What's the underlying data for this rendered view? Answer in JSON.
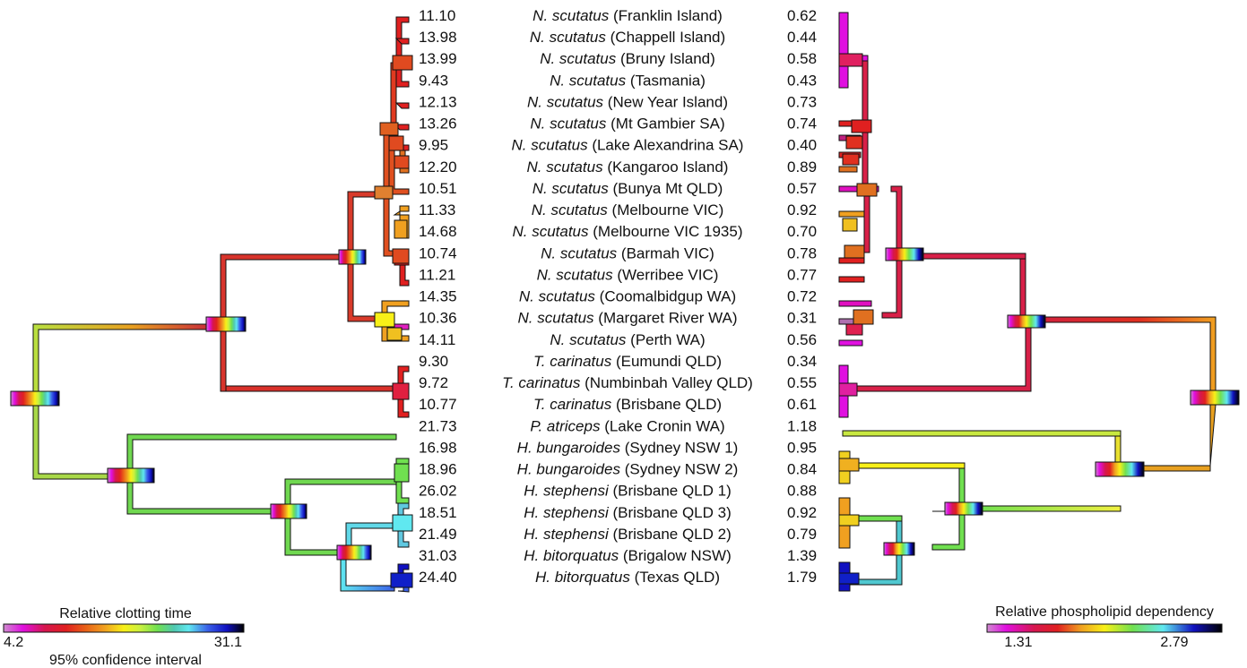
{
  "colors": {
    "palette_stops": [
      "#cf8ccf",
      "#e010e0",
      "#d61650",
      "#e02020",
      "#e86018",
      "#f0a020",
      "#f8f018",
      "#c8f040",
      "#70e050",
      "#50c8b0",
      "#60e8f0",
      "#3a60e8",
      "#1010c0",
      "#000000"
    ],
    "border": "#111111"
  },
  "left_legend": {
    "title": "Relative clotting time",
    "min_label": "4.2",
    "max_label": "31.1",
    "note": "95% confidence interval"
  },
  "right_legend": {
    "title": "Relative phospholipid dependency",
    "min_label": "1.31",
    "max_label": "2.79"
  },
  "rows": [
    {
      "clot": "11.10",
      "genus": "N. scutatus",
      "locality": "(Franklin Island)",
      "pl": "0.62"
    },
    {
      "clot": "13.98",
      "genus": "N. scutatus",
      "locality": "(Chappell Island)",
      "pl": "0.44"
    },
    {
      "clot": "13.99",
      "genus": "N. scutatus",
      "locality": "(Bruny Island)",
      "pl": "0.58"
    },
    {
      "clot": "9.43",
      "genus": "N. scutatus",
      "locality": "(Tasmania)",
      "pl": "0.43"
    },
    {
      "clot": "12.13",
      "genus": "N. scutatus",
      "locality": "(New Year Island)",
      "pl": "0.73"
    },
    {
      "clot": "13.26",
      "genus": "N. scutatus",
      "locality": "(Mt Gambier SA)",
      "pl": "0.74"
    },
    {
      "clot": "9.95",
      "genus": "N. scutatus",
      "locality": "(Lake Alexandrina SA)",
      "pl": "0.40"
    },
    {
      "clot": "12.20",
      "genus": "N. scutatus",
      "locality": "(Kangaroo Island)",
      "pl": "0.89"
    },
    {
      "clot": "10.51",
      "genus": "N. scutatus",
      "locality": "(Bunya Mt QLD)",
      "pl": "0.57"
    },
    {
      "clot": "11.33",
      "genus": "N. scutatus",
      "locality": "(Melbourne VIC)",
      "pl": "0.92"
    },
    {
      "clot": "14.68",
      "genus": "N. scutatus",
      "locality": "(Melbourne VIC 1935)",
      "pl": "0.70"
    },
    {
      "clot": "10.74",
      "genus": "N. scutatus",
      "locality": "(Barmah VIC)",
      "pl": "0.78"
    },
    {
      "clot": "11.21",
      "genus": "N. scutatus",
      "locality": "(Werribee VIC)",
      "pl": "0.77"
    },
    {
      "clot": "14.35",
      "genus": "N. scutatus",
      "locality": "(Coomalbidgup WA)",
      "pl": "0.72"
    },
    {
      "clot": "10.36",
      "genus": "N. scutatus",
      "locality": "(Margaret River WA)",
      "pl": "0.31"
    },
    {
      "clot": "14.11",
      "genus": "N. scutatus",
      "locality": "(Perth WA)",
      "pl": "0.56"
    },
    {
      "clot": "9.30",
      "genus": "T. carinatus",
      "locality": "(Eumundi QLD)",
      "pl": "0.34"
    },
    {
      "clot": "9.72",
      "genus": "T. carinatus",
      "locality": "(Numbinbah Valley QLD)",
      "pl": "0.55"
    },
    {
      "clot": "10.77",
      "genus": "T. carinatus",
      "locality": "(Brisbane QLD)",
      "pl": "0.61"
    },
    {
      "clot": "21.73",
      "genus": "P. atriceps",
      "locality": "(Lake Cronin WA)",
      "pl": "1.18"
    },
    {
      "clot": "16.98",
      "genus": "H. bungaroides",
      "locality": "(Sydney NSW 1)",
      "pl": "0.95"
    },
    {
      "clot": "18.96",
      "genus": "H. bungaroides",
      "locality": "(Sydney NSW 2)",
      "pl": "0.84"
    },
    {
      "clot": "26.02",
      "genus": "H. stephensi",
      "locality": "(Brisbane QLD 1)",
      "pl": "0.88"
    },
    {
      "clot": "18.51",
      "genus": "H. stephensi",
      "locality": "(Brisbane QLD 3)",
      "pl": "0.92"
    },
    {
      "clot": "21.49",
      "genus": "H. stephensi",
      "locality": "(Brisbane QLD 2)",
      "pl": "0.79"
    },
    {
      "clot": "31.03",
      "genus": "H. bitorquatus",
      "locality": "(Brigalow NSW)",
      "pl": "1.39"
    },
    {
      "clot": "24.40",
      "genus": "H. bitorquatus",
      "locality": "(Texas QLD)",
      "pl": "1.79"
    }
  ]
}
